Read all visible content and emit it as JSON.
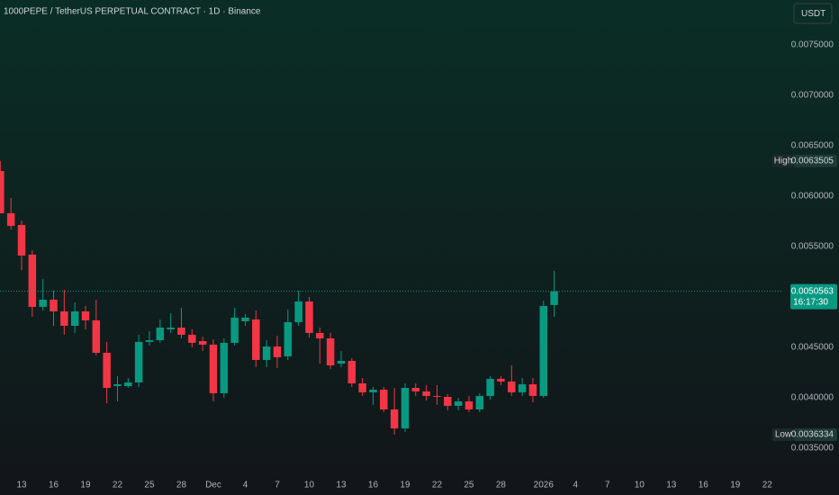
{
  "chart_data": {
    "type": "candlestick",
    "title": "1000PEPE / TetherUS PERPETUAL CONTRACT · 1D · Binance",
    "currency": "USDT",
    "up_color": "#089981",
    "down_color": "#f23645",
    "high_label": "High",
    "low_label": "Low",
    "countdown": "16:17:30",
    "open": [
      0.00625,
      0.00583,
      0.005714,
      0.00542,
      0.004902,
      0.004973,
      0.004857,
      0.004714,
      0.004857,
      0.004768,
      0.004446,
      0.004116,
      0.004116,
      0.004152,
      0.004554,
      0.004571,
      0.004679,
      0.004696,
      0.004625,
      0.004562,
      0.004527,
      0.004045,
      0.004545,
      0.004759,
      0.004777,
      0.004375,
      0.004509,
      0.004411,
      0.00475,
      0.004955,
      0.004643,
      0.004589,
      0.004339,
      0.004366,
      0.004143,
      0.004054,
      0.00408,
      0.003884,
      0.003696,
      0.004098,
      0.004063,
      0.004018,
      0.004009,
      0.00392,
      0.003964,
      0.003884,
      0.004018,
      0.004188,
      0.004161,
      0.004054,
      0.004134,
      0.004018,
      0.00492
    ],
    "high": [
      0.0063505,
      0.005982,
      0.005759,
      0.005464,
      0.005179,
      0.005063,
      0.005071,
      0.004946,
      0.004911,
      0.004973,
      0.004554,
      0.004214,
      0.004196,
      0.004625,
      0.004661,
      0.004777,
      0.004839,
      0.004893,
      0.004679,
      0.004607,
      0.00458,
      0.004589,
      0.004893,
      0.00483,
      0.004866,
      0.004571,
      0.004616,
      0.004875,
      0.005063,
      0.005,
      0.004696,
      0.004643,
      0.004464,
      0.004393,
      0.004196,
      0.004107,
      0.004107,
      0.004098,
      0.004143,
      0.004143,
      0.004125,
      0.004125,
      0.004036,
      0.004,
      0.004018,
      0.004045,
      0.004214,
      0.004214,
      0.004321,
      0.004196,
      0.004196,
      0.004964,
      0.005259
    ],
    "low": [
      0.00583,
      0.00567,
      0.005268,
      0.004804,
      0.004866,
      0.004714,
      0.004625,
      0.004643,
      0.004679,
      0.00442,
      0.003946,
      0.003964,
      0.004098,
      0.004107,
      0.004518,
      0.004545,
      0.004643,
      0.004589,
      0.0045,
      0.004464,
      0.003964,
      0.004,
      0.004518,
      0.004714,
      0.004304,
      0.004304,
      0.004295,
      0.004375,
      0.004714,
      0.004598,
      0.004339,
      0.004286,
      0.004304,
      0.004107,
      0.004018,
      0.003929,
      0.003857,
      0.0036334,
      0.003661,
      0.004018,
      0.003973,
      0.003929,
      0.003875,
      0.003875,
      0.003857,
      0.003857,
      0.003982,
      0.004125,
      0.004018,
      0.004018,
      0.003955,
      0.004,
      0.004804
    ],
    "close": [
      0.00583,
      0.005705,
      0.005411,
      0.004902,
      0.004973,
      0.004857,
      0.004714,
      0.004857,
      0.004768,
      0.004446,
      0.004098,
      0.004134,
      0.004152,
      0.004554,
      0.004571,
      0.004696,
      0.004696,
      0.004625,
      0.004545,
      0.004527,
      0.004045,
      0.004545,
      0.004795,
      0.004795,
      0.004375,
      0.004509,
      0.004402,
      0.00475,
      0.004955,
      0.004643,
      0.004589,
      0.004321,
      0.004366,
      0.004143,
      0.004054,
      0.00408,
      0.003884,
      0.003696,
      0.004098,
      0.004063,
      0.004018,
      0.004009,
      0.00392,
      0.003964,
      0.003884,
      0.004018,
      0.004188,
      0.004161,
      0.004054,
      0.004134,
      0.004018,
      0.004911,
      0.0050563
    ],
    "xlim": [
      0,
      73.5
    ],
    "xticks": [
      {
        "value": 2,
        "label": "13"
      },
      {
        "value": 5,
        "label": "16"
      },
      {
        "value": 8,
        "label": "19"
      },
      {
        "value": 11,
        "label": "22"
      },
      {
        "value": 14,
        "label": "25"
      },
      {
        "value": 17,
        "label": "28"
      },
      {
        "value": 20,
        "label": "Dec"
      },
      {
        "value": 23,
        "label": "4"
      },
      {
        "value": 26,
        "label": "7"
      },
      {
        "value": 29,
        "label": "10"
      },
      {
        "value": 32,
        "label": "13"
      },
      {
        "value": 35,
        "label": "16"
      },
      {
        "value": 38,
        "label": "19"
      },
      {
        "value": 41,
        "label": "22"
      },
      {
        "value": 44,
        "label": "25"
      },
      {
        "value": 47,
        "label": "28"
      },
      {
        "value": 51,
        "label": "2026"
      },
      {
        "value": 54,
        "label": "4"
      },
      {
        "value": 57,
        "label": "7"
      },
      {
        "value": 60,
        "label": "10"
      },
      {
        "value": 63,
        "label": "13"
      },
      {
        "value": 66,
        "label": "16"
      },
      {
        "value": 69,
        "label": "19"
      },
      {
        "value": 72,
        "label": "22"
      }
    ],
    "ylim": [
      0.003214,
      0.007946
    ],
    "yticks": [
      {
        "value": 0.0035,
        "label": "0.0035000"
      },
      {
        "value": 0.004,
        "label": "0.0040000"
      },
      {
        "value": 0.0045,
        "label": "0.0045000"
      },
      {
        "value": 0.0055,
        "label": "0.0055000"
      },
      {
        "value": 0.006,
        "label": "0.0060000"
      },
      {
        "value": 0.0065,
        "label": "0.0065000"
      },
      {
        "value": 0.007,
        "label": "0.0070000"
      },
      {
        "value": 0.0075,
        "label": "0.0075000"
      }
    ]
  }
}
